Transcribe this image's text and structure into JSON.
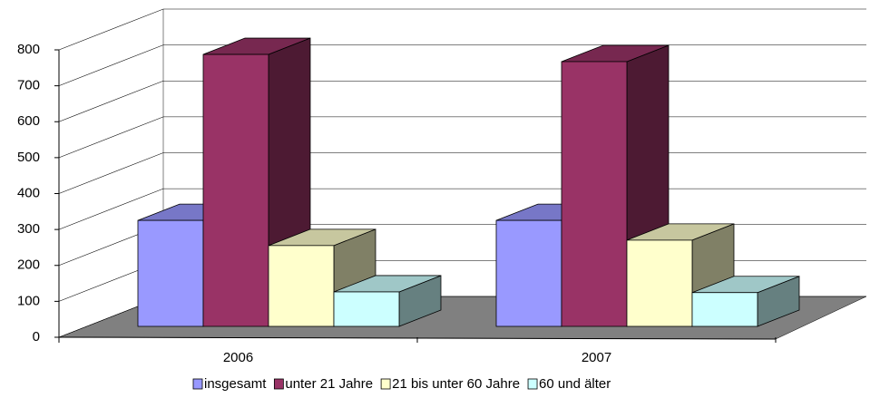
{
  "chart_data": {
    "type": "bar",
    "categories": [
      "2006",
      "2007"
    ],
    "series": [
      {
        "name": "insgesamt",
        "color": "#9999ff",
        "values": [
          295,
          295
        ]
      },
      {
        "name": "unter 21 Jahre",
        "color": "#993366",
        "values": [
          757,
          737
        ]
      },
      {
        "name": "21 bis unter 60 Jahre",
        "color": "#ffffcc",
        "values": [
          225,
          240
        ]
      },
      {
        "name": "60 und älter",
        "color": "#ccffff",
        "values": [
          96,
          94
        ]
      }
    ],
    "ylim": [
      0,
      800
    ],
    "yticks": [
      0,
      100,
      200,
      300,
      400,
      500,
      600,
      700,
      800
    ],
    "grid": true,
    "legend": "bottom"
  }
}
